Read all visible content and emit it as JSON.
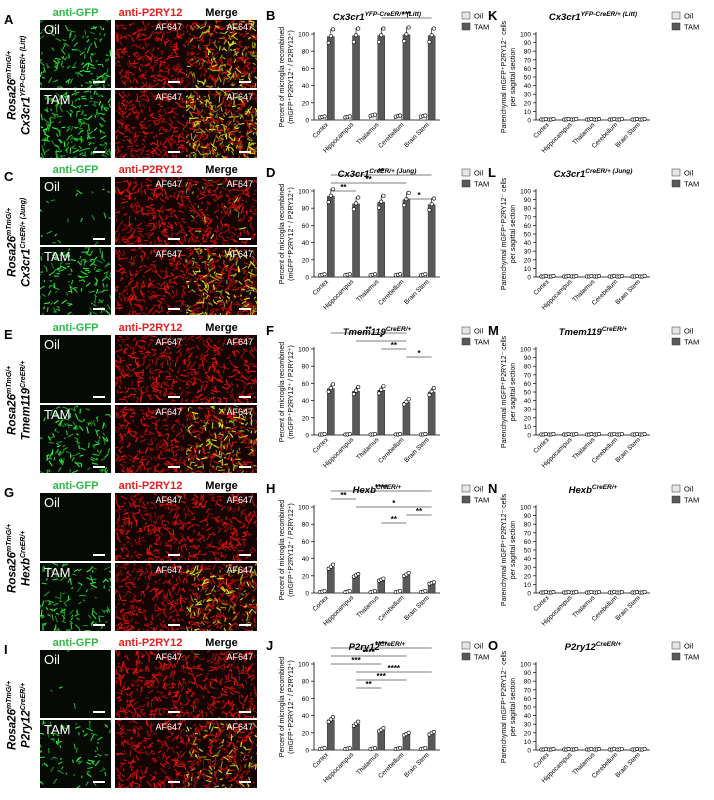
{
  "columns": {
    "gfp": "anti-GFP",
    "p2ry12": "anti-P2RY12",
    "merge": "Merge"
  },
  "colors": {
    "gfp": "#2db84a",
    "p2ry12": "#e01f1f",
    "oil_bar": "#e6e6e6",
    "tam_bar": "#595959"
  },
  "rows": [
    {
      "letter": "A",
      "chart_letter": "B",
      "flat_letter": "K",
      "label_main": "Rosa26",
      "label_sup": "mTmG/+",
      "label_line2": "Cx3cr1",
      "label_sup2": "YFP-CreER/+ (Litt)",
      "cond_top": "Oil",
      "cond_bottom": "TAM",
      "af": "AF647"
    },
    {
      "letter": "C",
      "chart_letter": "D",
      "flat_letter": "L",
      "label_main": "Rosa26",
      "label_sup": "mTmG/+",
      "label_line2": "Cx3cr1",
      "label_sup2": "CreER/+ (Jung)",
      "cond_top": "Oil",
      "cond_bottom": "TAM",
      "af": "AF647"
    },
    {
      "letter": "E",
      "chart_letter": "F",
      "flat_letter": "M",
      "label_main": "Rosa26",
      "label_sup": "mTmG/+",
      "label_line2": "Tmem119",
      "label_sup2": "CreER/+",
      "cond_top": "Oil",
      "cond_bottom": "TAM",
      "af": "AF647"
    },
    {
      "letter": "G",
      "chart_letter": "H",
      "flat_letter": "N",
      "label_main": "Rosa26",
      "label_sup": "mTmG/+",
      "label_line2": "Hexb",
      "label_sup2": "CreER/+",
      "cond_top": "Oil",
      "cond_bottom": "TAM",
      "af": "AF647"
    },
    {
      "letter": "I",
      "chart_letter": "J",
      "flat_letter": "O",
      "label_main": "Rosa26",
      "label_sup": "mTmG/+",
      "label_line2": "P2ry12",
      "label_sup2": "CreER/+",
      "cond_top": "Oil",
      "cond_bottom": "TAM",
      "af": "AF647"
    }
  ],
  "chart_data": [
    {
      "type": "bar",
      "title": "Cx3cr1",
      "title_sup": "YFP-CreER/+ (Litt)",
      "ylabel": "Percent of microglia recombined",
      "ylabel2": "(mGFP⁺P2RY12⁺ / P2RY12⁺)",
      "ylim": [
        0,
        100
      ],
      "yticks": [
        0,
        20,
        40,
        60,
        80,
        100
      ],
      "categories": [
        "Cortex",
        "Hippocampus",
        "Thalamus",
        "Cerebellum",
        "Brain Stem"
      ],
      "series": [
        {
          "name": "Oil",
          "values": [
            3,
            3,
            5,
            4,
            4
          ]
        },
        {
          "name": "TAM",
          "values": [
            97,
            98,
            98,
            99,
            98
          ]
        }
      ],
      "significance": [
        {
          "from": 2,
          "to": 4,
          "label": "***"
        }
      ]
    },
    {
      "type": "bar",
      "title": "Cx3cr1",
      "title_sup": "CreER/+ (Jung)",
      "ylabel": "Percent of microglia recombined",
      "ylabel2": "(mGFP⁺P2RY12⁺ / P2RY12⁺)",
      "ylim": [
        0,
        100
      ],
      "yticks": [
        0,
        20,
        40,
        60,
        80,
        100
      ],
      "categories": [
        "Cortex",
        "Hippocampus",
        "Thalamus",
        "Cerebellum",
        "Brain Stem"
      ],
      "series": [
        {
          "name": "Oil",
          "values": [
            2,
            2,
            2,
            2,
            2
          ]
        },
        {
          "name": "TAM",
          "values": [
            94,
            85,
            87,
            90,
            84
          ]
        }
      ],
      "significance": [
        {
          "from": 0,
          "to": 4,
          "label": "**"
        },
        {
          "from": 0,
          "to": 3,
          "label": "**"
        },
        {
          "from": 0,
          "to": 1,
          "label": "**"
        },
        {
          "from": 3,
          "to": 4,
          "label": "*"
        }
      ]
    },
    {
      "type": "bar",
      "title": "Tmem119",
      "title_sup": "CreER/+",
      "ylabel": "Percent of microglia recombined",
      "ylabel2": "(mGFP⁺P2RY12⁺ / P2RY12⁺)",
      "ylim": [
        0,
        100
      ],
      "yticks": [
        0,
        20,
        40,
        60,
        80,
        100
      ],
      "categories": [
        "Cortex",
        "Hippocampus",
        "Thalamus",
        "Cerebellum",
        "Brain Stem"
      ],
      "series": [
        {
          "name": "Oil",
          "values": [
            0,
            0,
            0,
            0,
            0
          ]
        },
        {
          "name": "TAM",
          "values": [
            54,
            51,
            52,
            38,
            50
          ]
        }
      ],
      "significance": [
        {
          "from": 0,
          "to": 3,
          "label": "**"
        },
        {
          "from": 1,
          "to": 3,
          "label": "*"
        },
        {
          "from": 2,
          "to": 3,
          "label": "**"
        },
        {
          "from": 3,
          "to": 4,
          "label": "*"
        }
      ]
    },
    {
      "type": "bar",
      "title": "Hexb",
      "title_sup": "CreER/+",
      "ylabel": "Percent of microglia recombined",
      "ylabel2": "(mGFP⁺P2RY12⁺ / P2RY12⁺)",
      "ylim": [
        0,
        100
      ],
      "yticks": [
        0,
        20,
        40,
        60,
        80,
        100
      ],
      "categories": [
        "Cortex",
        "Hippocampus",
        "Thalamus",
        "Cerebellum",
        "Brain Stem"
      ],
      "series": [
        {
          "name": "Oil",
          "values": [
            1,
            1,
            1,
            1,
            1
          ]
        },
        {
          "name": "TAM",
          "values": [
            30,
            20,
            15,
            21,
            11
          ]
        }
      ],
      "significance": [
        {
          "from": 0,
          "to": 4,
          "label": "****"
        },
        {
          "from": 0,
          "to": 1,
          "label": "**"
        },
        {
          "from": 1,
          "to": 4,
          "label": "*"
        },
        {
          "from": 3,
          "to": 4,
          "label": "**"
        },
        {
          "from": 2,
          "to": 3,
          "label": "**"
        }
      ]
    },
    {
      "type": "bar",
      "title": "P2ry12",
      "title_sup": "CreER/+",
      "ylabel": "Percent of microglia recombined",
      "ylabel2": "(mGFP⁺P2RY12⁺ / P2RY12⁺)",
      "ylim": [
        0,
        100
      ],
      "yticks": [
        0,
        20,
        40,
        60,
        80,
        100
      ],
      "categories": [
        "Cortex",
        "Hippocampus",
        "Thalamus",
        "Cerebellum",
        "Brain Stem"
      ],
      "series": [
        {
          "name": "Oil",
          "values": [
            1,
            1,
            1,
            1,
            1
          ]
        },
        {
          "name": "TAM",
          "values": [
            35,
            30,
            23,
            18,
            19
          ]
        }
      ],
      "significance": [
        {
          "from": 0,
          "to": 4,
          "label": "****"
        },
        {
          "from": 0,
          "to": 3,
          "label": "****"
        },
        {
          "from": 0,
          "to": 2,
          "label": "***"
        },
        {
          "from": 1,
          "to": 4,
          "label": "****"
        },
        {
          "from": 1,
          "to": 3,
          "label": "***"
        },
        {
          "from": 1,
          "to": 2,
          "label": "**"
        }
      ]
    },
    {
      "type": "bar",
      "title": "Cx3cr1",
      "title_sup": "YFP-CreER/+ (Litt)",
      "ylabel": "Parenchymal mGFP⁺P2RY12⁻ cells",
      "ylabel2": "per sagittal section",
      "ylim": [
        0,
        100
      ],
      "yticks": [
        0,
        10,
        20,
        30,
        40,
        50,
        60,
        70,
        80,
        90,
        100
      ],
      "categories": [
        "Cortex",
        "Hippocampus",
        "Thalamus",
        "Cerebellum",
        "Brain Stem"
      ],
      "series": [
        {
          "name": "Oil",
          "values": [
            0,
            0,
            0,
            0,
            0
          ]
        },
        {
          "name": "TAM",
          "values": [
            0,
            0,
            0,
            0,
            0
          ]
        }
      ],
      "significance": []
    },
    {
      "type": "bar",
      "title": "Cx3cr1",
      "title_sup": "CreER/+ (Jung)",
      "ylabel": "Parenchymal mGFP⁺P2RY12⁻ cells",
      "ylabel2": "per sagittal section",
      "ylim": [
        0,
        100
      ],
      "yticks": [
        0,
        10,
        20,
        30,
        40,
        50,
        60,
        70,
        80,
        90,
        100
      ],
      "categories": [
        "Cortex",
        "Hippocampus",
        "Thalamus",
        "Cerebellum",
        "Brain Stem"
      ],
      "series": [
        {
          "name": "Oil",
          "values": [
            0,
            0,
            0,
            0,
            0
          ]
        },
        {
          "name": "TAM",
          "values": [
            0,
            0,
            0,
            0,
            0
          ]
        }
      ],
      "significance": []
    },
    {
      "type": "bar",
      "title": "Tmem119",
      "title_sup": "CreER/+",
      "ylabel": "Parenchymal mGFP⁺P2RY12⁻ cells",
      "ylabel2": "per sagittal section",
      "ylim": [
        0,
        100
      ],
      "yticks": [
        0,
        10,
        20,
        30,
        40,
        50,
        60,
        70,
        80,
        90,
        100
      ],
      "categories": [
        "Cortex",
        "Hippocampus",
        "Thalamus",
        "Cerebellum",
        "Brain Stem"
      ],
      "series": [
        {
          "name": "Oil",
          "values": [
            0,
            0,
            0,
            0,
            0
          ]
        },
        {
          "name": "TAM",
          "values": [
            0,
            0,
            0,
            0,
            0
          ]
        }
      ],
      "significance": []
    },
    {
      "type": "bar",
      "title": "Hexb",
      "title_sup": "CreER/+",
      "ylabel": "Parenchymal mGFP⁺P2RY12⁻ cells",
      "ylabel2": "per sagittal section",
      "ylim": [
        0,
        100
      ],
      "yticks": [
        0,
        10,
        20,
        30,
        40,
        50,
        60,
        70,
        80,
        90,
        100
      ],
      "categories": [
        "Cortex",
        "Hippocampus",
        "Thalamus",
        "Cerebellum",
        "Brain Stem"
      ],
      "series": [
        {
          "name": "Oil",
          "values": [
            0,
            0,
            0,
            0,
            0
          ]
        },
        {
          "name": "TAM",
          "values": [
            0,
            0,
            0,
            0,
            0
          ]
        }
      ],
      "significance": []
    },
    {
      "type": "bar",
      "title": "P2ry12",
      "title_sup": "CreER/+",
      "ylabel": "Parenchymal mGFP⁺P2RY12⁻ cells",
      "ylabel2": "per sagittal section",
      "ylim": [
        0,
        100
      ],
      "yticks": [
        0,
        10,
        20,
        30,
        40,
        50,
        60,
        70,
        80,
        90,
        100
      ],
      "categories": [
        "Cortex",
        "Hippocampus",
        "Thalamus",
        "Cerebellum",
        "Brain Stem"
      ],
      "series": [
        {
          "name": "Oil",
          "values": [
            0,
            0,
            0,
            0,
            0
          ]
        },
        {
          "name": "TAM",
          "values": [
            0,
            0,
            0,
            0,
            0
          ]
        }
      ],
      "significance": []
    }
  ]
}
